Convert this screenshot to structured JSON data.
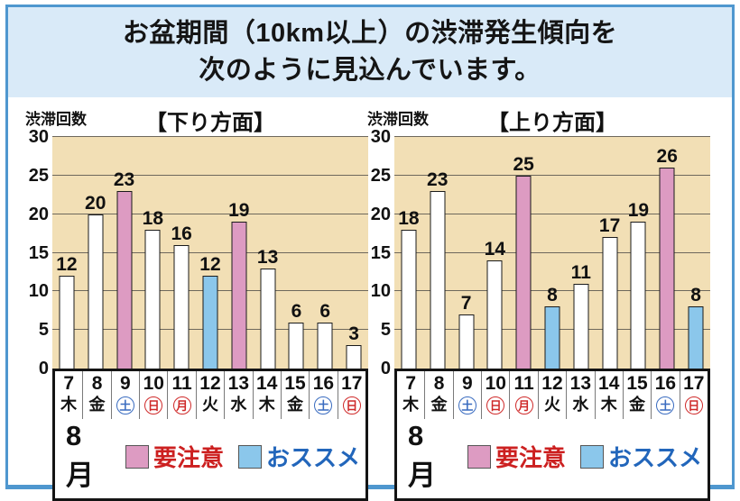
{
  "title": {
    "line1": "お盆期間（10km以上）の渋滞発生傾向を",
    "line2": "次のように見込んでいます。"
  },
  "month_label": "8月",
  "legend": {
    "caution_label": "要注意",
    "recommended_label": "おススメ"
  },
  "days": [
    {
      "date": "7",
      "weekday": "木",
      "mark": "none"
    },
    {
      "date": "8",
      "weekday": "金",
      "mark": "none"
    },
    {
      "date": "9",
      "weekday": "土",
      "mark": "sat"
    },
    {
      "date": "10",
      "weekday": "日",
      "mark": "hol"
    },
    {
      "date": "11",
      "weekday": "月",
      "mark": "hol"
    },
    {
      "date": "12",
      "weekday": "火",
      "mark": "none"
    },
    {
      "date": "13",
      "weekday": "水",
      "mark": "none"
    },
    {
      "date": "14",
      "weekday": "木",
      "mark": "none"
    },
    {
      "date": "15",
      "weekday": "金",
      "mark": "none"
    },
    {
      "date": "16",
      "weekday": "土",
      "mark": "sat"
    },
    {
      "date": "17",
      "weekday": "日",
      "mark": "hol"
    }
  ],
  "colors": {
    "frame_border": "#4f97cf",
    "title_bg": "#d9eaf8",
    "plot_bg": "#f2dfb5",
    "bar_default": "#ffffff",
    "bar_caution": "#dd9bc2",
    "bar_recommended": "#8bc7eb",
    "caution_text": "#cc2020",
    "recommended_text": "#2266bb",
    "saturday_text": "#3a6cc0",
    "holiday_text": "#cf2a2a",
    "gridline": "#6e685c"
  },
  "chart_data": [
    {
      "type": "bar",
      "title": "【下り方面】",
      "ylabel": "渋滞回数",
      "ylim": [
        0,
        30
      ],
      "yticks": [
        0,
        5,
        10,
        15,
        20,
        25,
        30
      ],
      "grid": true,
      "legend_position": "bottom",
      "x_axis_title": "8月",
      "categories": [
        "8/7 木",
        "8/8 金",
        "8/9 土",
        "8/10 日",
        "8/11 月",
        "8/12 火",
        "8/13 水",
        "8/14 木",
        "8/15 金",
        "8/16 土",
        "8/17 日"
      ],
      "values": [
        12,
        20,
        23,
        18,
        16,
        12,
        19,
        13,
        6,
        6,
        3
      ],
      "bar_types": [
        "default",
        "default",
        "caution",
        "default",
        "default",
        "recommended",
        "caution",
        "default",
        "default",
        "default",
        "default"
      ],
      "legend": [
        {
          "label": "要注意",
          "color": "#dd9bc2"
        },
        {
          "label": "おススメ",
          "color": "#8bc7eb"
        }
      ]
    },
    {
      "type": "bar",
      "title": "【上り方面】",
      "ylabel": "渋滞回数",
      "ylim": [
        0,
        30
      ],
      "yticks": [
        0,
        5,
        10,
        15,
        20,
        25,
        30
      ],
      "grid": true,
      "legend_position": "bottom",
      "x_axis_title": "8月",
      "categories": [
        "8/7 木",
        "8/8 金",
        "8/9 土",
        "8/10 日",
        "8/11 月",
        "8/12 火",
        "8/13 水",
        "8/14 木",
        "8/15 金",
        "8/16 土",
        "8/17 日"
      ],
      "values": [
        18,
        23,
        7,
        14,
        25,
        8,
        11,
        17,
        19,
        26,
        8
      ],
      "bar_types": [
        "default",
        "default",
        "default",
        "default",
        "caution",
        "recommended",
        "default",
        "default",
        "default",
        "caution",
        "recommended"
      ],
      "legend": [
        {
          "label": "要注意",
          "color": "#dd9bc2"
        },
        {
          "label": "おススメ",
          "color": "#8bc7eb"
        }
      ]
    }
  ]
}
